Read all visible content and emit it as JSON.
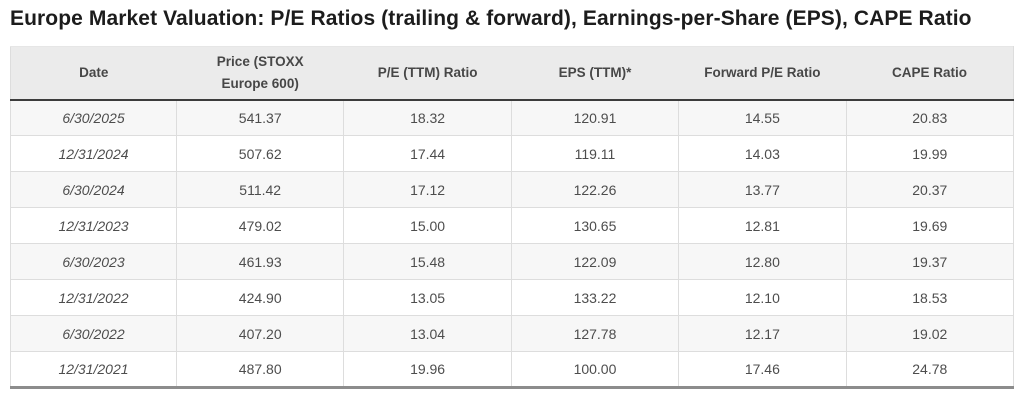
{
  "page": {
    "title": "Europe Market Valuation: P/E Ratios (trailing & forward), Earnings-per-Share (EPS), CAPE Ratio"
  },
  "colors": {
    "title_color": "#1c1c1c",
    "header_bg": "#ebebeb",
    "header_text": "#474747",
    "cell_text": "#4d4d4d",
    "border_light": "#dddddd",
    "header_border": "#3c3c3c",
    "table_bottom_border": "#8c8c8c",
    "stripe_bg": "#f7f7f7",
    "row_bg": "#ffffff"
  },
  "chart_data": {
    "type": "table",
    "title": "Europe Market Valuation: P/E Ratios (trailing & forward), Earnings-per-Share (EPS), CAPE Ratio",
    "columns": [
      "Date",
      "Price (STOXX Europe 600)",
      "P/E (TTM) Ratio",
      "EPS (TTM)*",
      "Forward P/E Ratio",
      "CAPE Ratio"
    ],
    "rows": [
      [
        "6/30/2025",
        "541.37",
        "18.32",
        "120.91",
        "14.55",
        "20.83"
      ],
      [
        "12/31/2024",
        "507.62",
        "17.44",
        "119.11",
        "14.03",
        "19.99"
      ],
      [
        "6/30/2024",
        "511.42",
        "17.12",
        "122.26",
        "13.77",
        "20.37"
      ],
      [
        "12/31/2023",
        "479.02",
        "15.00",
        "130.65",
        "12.81",
        "19.69"
      ],
      [
        "6/30/2023",
        "461.93",
        "15.48",
        "122.09",
        "12.80",
        "19.37"
      ],
      [
        "12/31/2022",
        "424.90",
        "13.05",
        "133.22",
        "12.10",
        "18.53"
      ],
      [
        "6/30/2022",
        "407.20",
        "13.04",
        "127.78",
        "12.17",
        "19.02"
      ],
      [
        "12/31/2021",
        "487.80",
        "19.96",
        "100.00",
        "17.46",
        "24.78"
      ]
    ],
    "layout": {
      "striped_rows": "odd",
      "date_style": "italic",
      "alignment": "center"
    }
  }
}
